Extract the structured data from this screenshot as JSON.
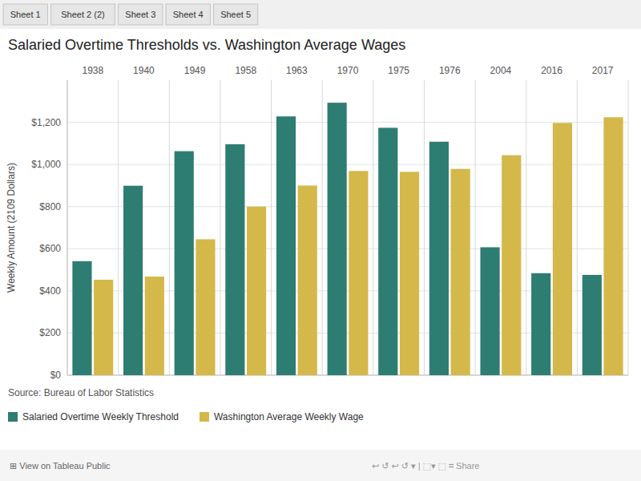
{
  "chart_data": {
    "type": "bar",
    "title": "Salaried Overtime Thresholds vs. Washington Average Wages",
    "ylabel": "Weekly Amount (2109 Dollars)",
    "categories": [
      "1938",
      "1940",
      "1949",
      "1958",
      "1963",
      "1970",
      "1975",
      "1976",
      "2004",
      "2016",
      "2017"
    ],
    "series": [
      {
        "name": "Salaried Overtime Weekly Threshold",
        "color": "#2e7d72",
        "values": [
          541,
          899,
          1063,
          1096,
          1228,
          1293,
          1174,
          1108,
          607,
          484,
          476
        ]
      },
      {
        "name": "Washington Average Weekly Wage",
        "color": "#d4b84a",
        "values": [
          453,
          468,
          645,
          800,
          900,
          969,
          965,
          979,
          1044,
          1197,
          1224
        ]
      }
    ],
    "ylim": [
      0,
      1400
    ],
    "yticks": [
      {
        "value": 0,
        "label": "$0"
      },
      {
        "value": 200,
        "label": "$200"
      },
      {
        "value": 400,
        "label": "$400"
      },
      {
        "value": 600,
        "label": "$600"
      },
      {
        "value": 800,
        "label": "$800"
      },
      {
        "value": 1000,
        "label": "$1,000"
      },
      {
        "value": 1200,
        "label": "$1,200"
      }
    ],
    "grid": true,
    "legend": "bottom",
    "annotations": [
      "Source: Bureau of Labor Statistics",
      "Sheet 1",
      "Sheet 2 (2)",
      "Sheet 3",
      "Sheet 4",
      "Sheet 5",
      "⊞  View on Tableau Public",
      "↩  ↺  ↩  ↺  ▾  |  ⬚▾  ⬚  ⌗  Share"
    ]
  }
}
